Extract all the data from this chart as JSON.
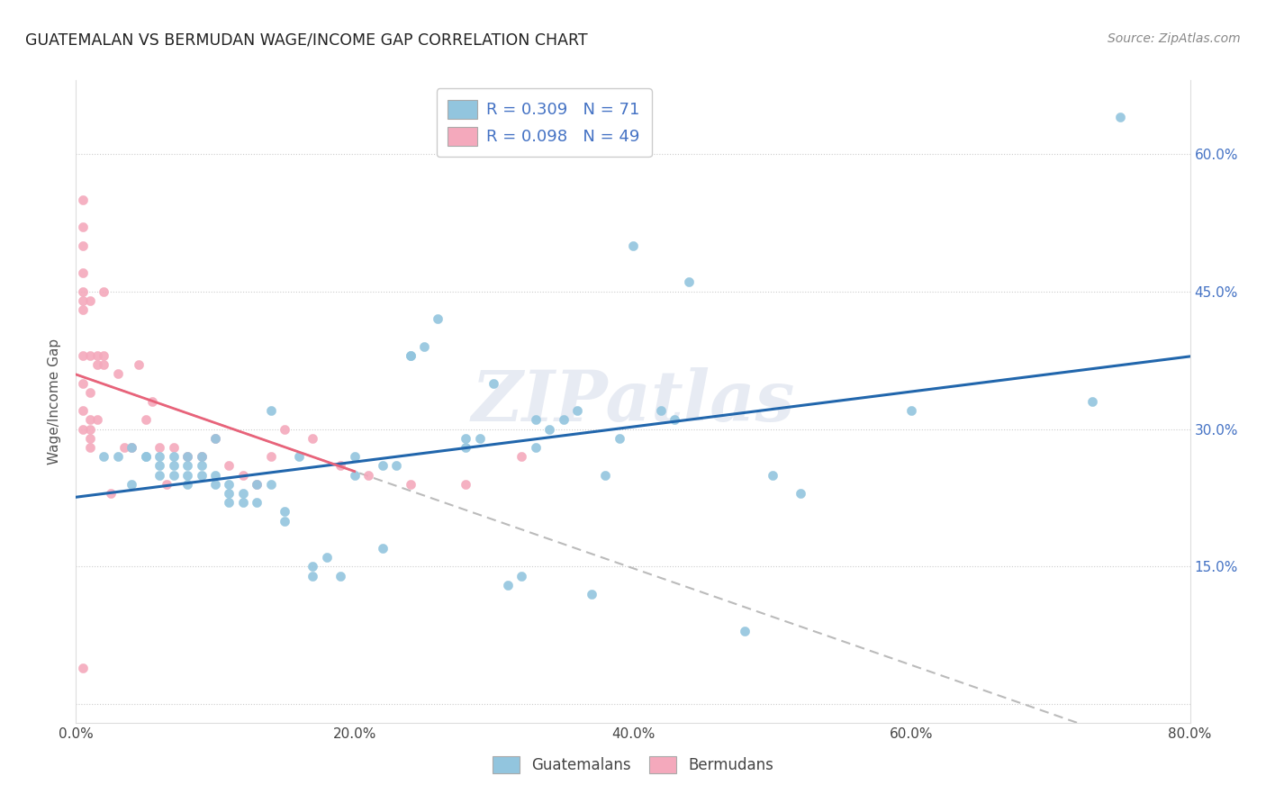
{
  "title": "GUATEMALAN VS BERMUDAN WAGE/INCOME GAP CORRELATION CHART",
  "source": "Source: ZipAtlas.com",
  "ylabel": "Wage/Income Gap",
  "xlim": [
    0.0,
    0.8
  ],
  "ylim": [
    -0.02,
    0.68
  ],
  "xticks": [
    0.0,
    0.2,
    0.4,
    0.6,
    0.8
  ],
  "yticks": [
    0.0,
    0.15,
    0.3,
    0.45,
    0.6
  ],
  "xticklabels": [
    "0.0%",
    "20.0%",
    "40.0%",
    "60.0%",
    "80.0%"
  ],
  "yticklabels_right": [
    "",
    "15.0%",
    "30.0%",
    "45.0%",
    "60.0%"
  ],
  "guatemalan_R": 0.309,
  "guatemalan_N": 71,
  "bermudan_R": 0.098,
  "bermudan_N": 49,
  "guatemalan_color": "#92c5de",
  "bermudan_color": "#f4a9bc",
  "trendline_guatemalan_color": "#2166ac",
  "trendline_bermudan_color": "#e8637a",
  "watermark": "ZIPatlas",
  "guatemalan_x": [
    0.02,
    0.03,
    0.04,
    0.04,
    0.05,
    0.05,
    0.06,
    0.06,
    0.06,
    0.07,
    0.07,
    0.07,
    0.08,
    0.08,
    0.08,
    0.08,
    0.09,
    0.09,
    0.09,
    0.1,
    0.1,
    0.1,
    0.11,
    0.11,
    0.11,
    0.12,
    0.12,
    0.13,
    0.13,
    0.14,
    0.14,
    0.15,
    0.15,
    0.16,
    0.17,
    0.17,
    0.18,
    0.19,
    0.2,
    0.2,
    0.22,
    0.22,
    0.23,
    0.24,
    0.24,
    0.25,
    0.26,
    0.28,
    0.28,
    0.29,
    0.3,
    0.31,
    0.32,
    0.33,
    0.33,
    0.34,
    0.35,
    0.36,
    0.37,
    0.38,
    0.39,
    0.4,
    0.42,
    0.43,
    0.44,
    0.48,
    0.5,
    0.52,
    0.6,
    0.73,
    0.75
  ],
  "guatemalan_y": [
    0.27,
    0.27,
    0.24,
    0.28,
    0.27,
    0.27,
    0.26,
    0.27,
    0.25,
    0.26,
    0.25,
    0.27,
    0.27,
    0.26,
    0.24,
    0.25,
    0.27,
    0.26,
    0.25,
    0.29,
    0.25,
    0.24,
    0.23,
    0.22,
    0.24,
    0.23,
    0.22,
    0.24,
    0.22,
    0.32,
    0.24,
    0.21,
    0.2,
    0.27,
    0.14,
    0.15,
    0.16,
    0.14,
    0.27,
    0.25,
    0.17,
    0.26,
    0.26,
    0.38,
    0.38,
    0.39,
    0.42,
    0.28,
    0.29,
    0.29,
    0.35,
    0.13,
    0.14,
    0.31,
    0.28,
    0.3,
    0.31,
    0.32,
    0.12,
    0.25,
    0.29,
    0.5,
    0.32,
    0.31,
    0.46,
    0.08,
    0.25,
    0.23,
    0.32,
    0.33,
    0.64
  ],
  "bermudan_x": [
    0.005,
    0.005,
    0.005,
    0.005,
    0.005,
    0.005,
    0.005,
    0.005,
    0.005,
    0.005,
    0.005,
    0.005,
    0.01,
    0.01,
    0.01,
    0.01,
    0.01,
    0.01,
    0.01,
    0.015,
    0.015,
    0.015,
    0.02,
    0.02,
    0.02,
    0.025,
    0.03,
    0.035,
    0.04,
    0.045,
    0.05,
    0.055,
    0.06,
    0.065,
    0.07,
    0.08,
    0.09,
    0.1,
    0.11,
    0.12,
    0.13,
    0.14,
    0.15,
    0.17,
    0.19,
    0.21,
    0.24,
    0.28,
    0.32
  ],
  "bermudan_y": [
    0.55,
    0.52,
    0.5,
    0.47,
    0.45,
    0.44,
    0.43,
    0.38,
    0.35,
    0.32,
    0.3,
    0.04,
    0.44,
    0.38,
    0.34,
    0.31,
    0.3,
    0.29,
    0.28,
    0.38,
    0.37,
    0.31,
    0.45,
    0.38,
    0.37,
    0.23,
    0.36,
    0.28,
    0.28,
    0.37,
    0.31,
    0.33,
    0.28,
    0.24,
    0.28,
    0.27,
    0.27,
    0.29,
    0.26,
    0.25,
    0.24,
    0.27,
    0.3,
    0.29,
    0.26,
    0.25,
    0.24,
    0.24,
    0.27
  ]
}
